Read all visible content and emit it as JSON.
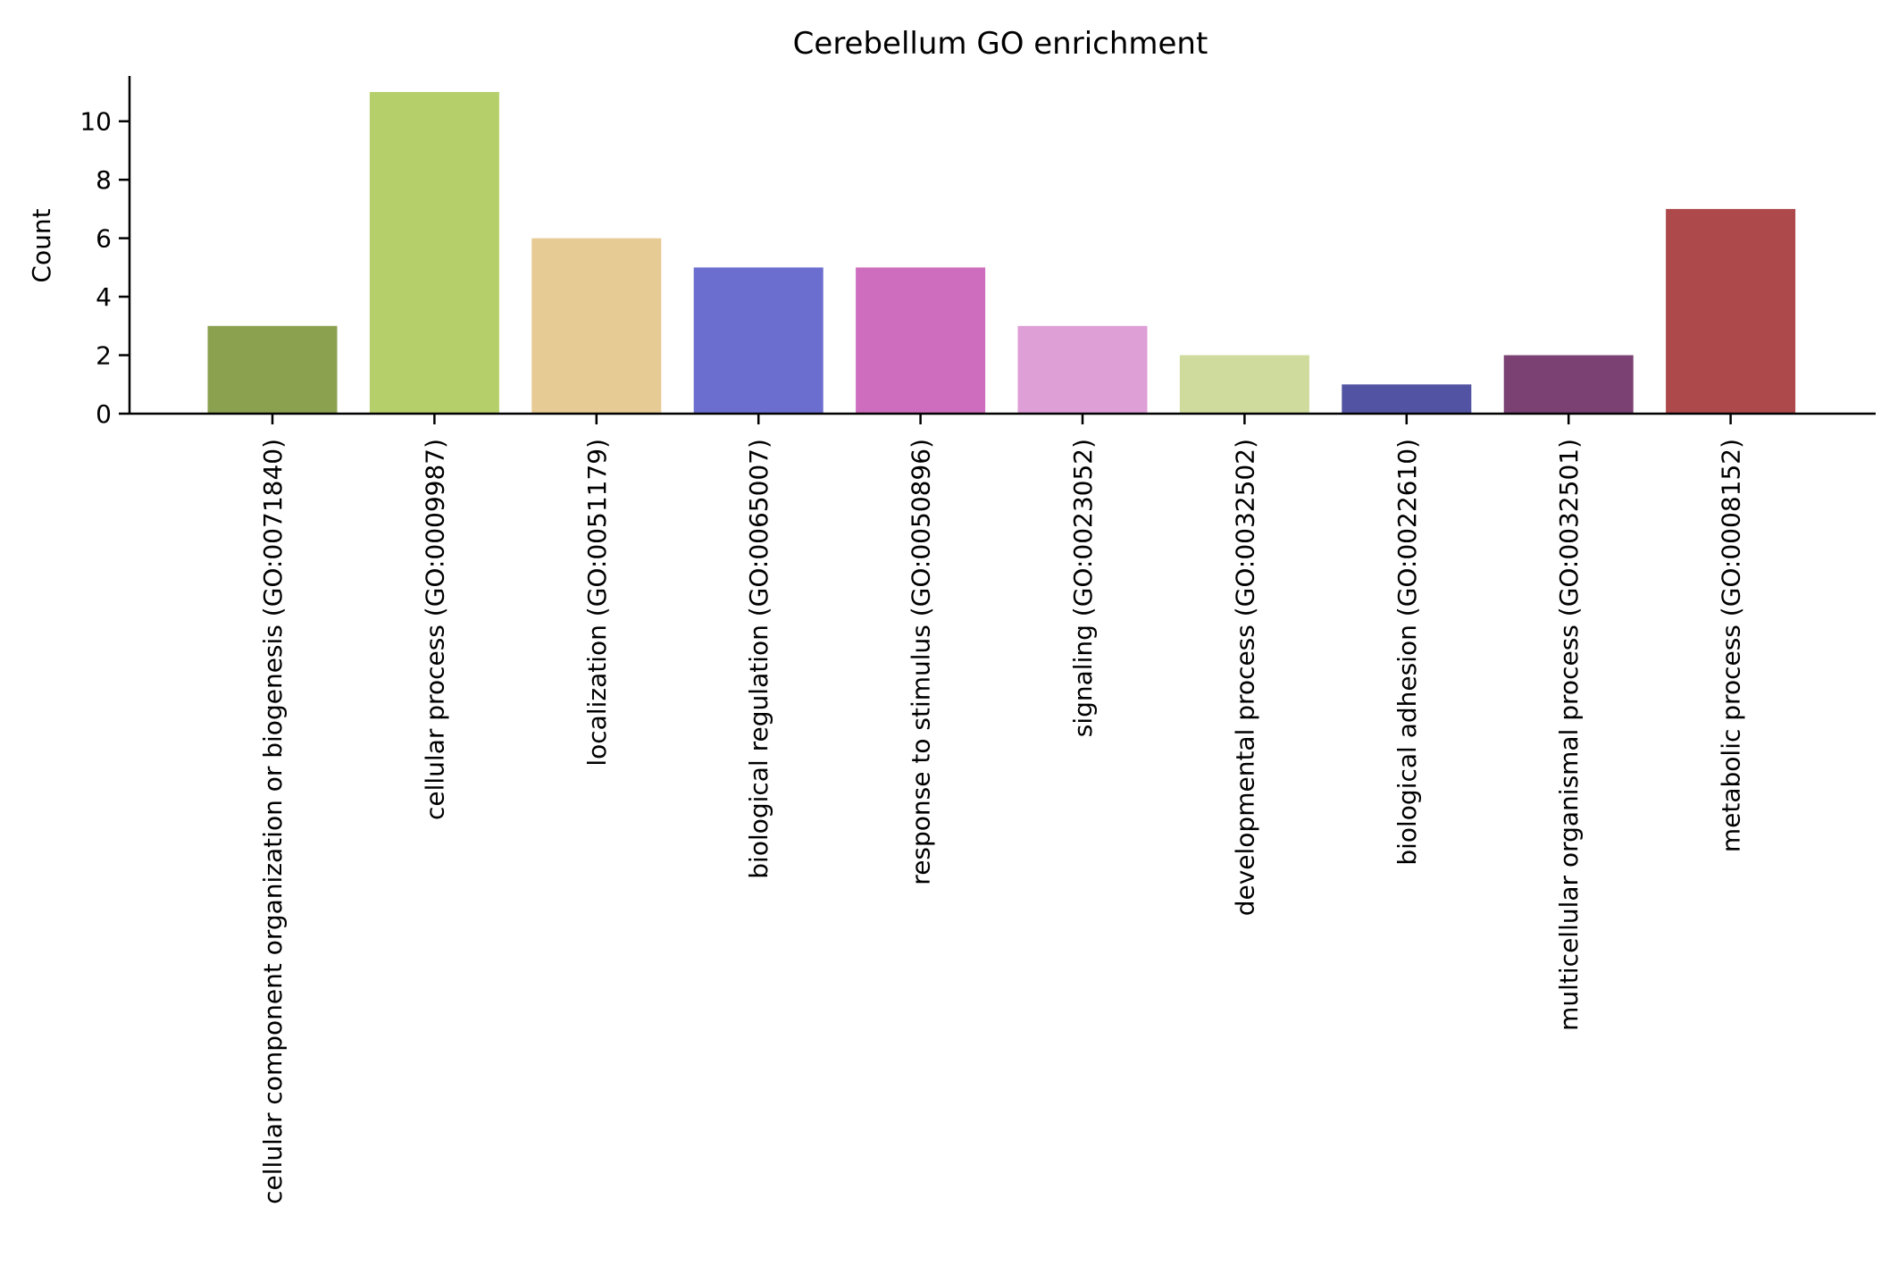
{
  "chart_data": {
    "type": "bar",
    "title": "Cerebellum GO enrichment",
    "xlabel": "",
    "ylabel": "Count",
    "ylim": [
      0,
      11.55
    ],
    "yticks": [
      0,
      2,
      4,
      6,
      8,
      10
    ],
    "grid": false,
    "legend": "none",
    "categories": [
      "cellular component organization or biogenesis (GO:0071840)",
      "cellular process (GO:0009987)",
      "localization (GO:0051179)",
      "biological regulation (GO:0065007)",
      "response to stimulus (GO:0050896)",
      "signaling (GO:0023052)",
      "developmental process (GO:0032502)",
      "biological adhesion (GO:0022610)",
      "multicellular organismal process (GO:0032501)",
      "metabolic process (GO:0008152)"
    ],
    "values": [
      3,
      11,
      6,
      5,
      5,
      3,
      2,
      1,
      2,
      7
    ],
    "colors": [
      "#8ba150",
      "#b5cf6a",
      "#e7cb94",
      "#6b6ecf",
      "#ce6dbd",
      "#de9ed6",
      "#cfdb9c",
      "#5254a3",
      "#7b4173",
      "#ad494a"
    ]
  }
}
